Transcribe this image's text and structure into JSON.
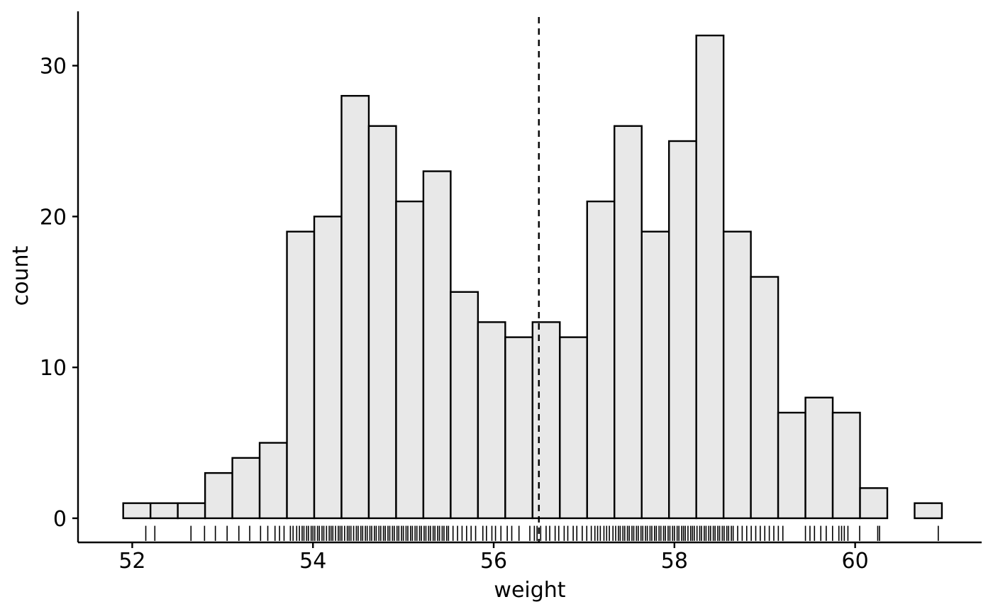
{
  "chart_data": {
    "type": "bar",
    "subtype": "histogram",
    "title": "",
    "xlabel": "weight",
    "ylabel": "count",
    "xlim": [
      51.4,
      61.4
    ],
    "ylim": [
      -1.6,
      33.6
    ],
    "x_ticks": [
      52,
      54,
      56,
      58,
      60
    ],
    "y_ticks": [
      0,
      10,
      20,
      30
    ],
    "x_tick_labels": [
      "52",
      "54",
      "56",
      "58",
      "60"
    ],
    "y_tick_labels": [
      "0",
      "10",
      "20",
      "30"
    ],
    "bin_start": 51.9,
    "bin_width": 0.302,
    "counts": [
      1,
      1,
      1,
      3,
      4,
      5,
      19,
      20,
      28,
      26,
      21,
      23,
      15,
      13,
      12,
      13,
      12,
      21,
      26,
      19,
      25,
      32,
      19,
      16,
      7,
      8,
      7,
      2,
      0,
      1
    ],
    "mean_line": {
      "x": 56.5,
      "style": "dashed"
    },
    "rug_x": [
      52.15,
      52.25,
      52.65,
      52.8,
      52.92,
      53.05,
      53.18,
      53.3,
      53.42,
      53.5,
      53.58,
      53.63,
      53.68,
      53.75,
      53.78,
      53.82,
      53.85,
      53.88,
      53.9,
      53.93,
      53.95,
      53.98,
      54.0,
      54.02,
      54.05,
      54.07,
      54.1,
      54.12,
      54.15,
      54.18,
      54.2,
      54.22,
      54.25,
      54.28,
      54.3,
      54.32,
      54.35,
      54.38,
      54.4,
      54.42,
      54.45,
      54.48,
      54.5,
      54.53,
      54.55,
      54.58,
      54.6,
      54.63,
      54.65,
      54.68,
      54.7,
      54.73,
      54.75,
      54.78,
      54.8,
      54.83,
      54.85,
      54.88,
      54.9,
      54.93,
      54.95,
      54.98,
      55.0,
      55.03,
      55.05,
      55.08,
      55.1,
      55.13,
      55.15,
      55.18,
      55.2,
      55.23,
      55.25,
      55.28,
      55.3,
      55.33,
      55.35,
      55.38,
      55.4,
      55.43,
      55.45,
      55.48,
      55.5,
      55.55,
      55.6,
      55.65,
      55.7,
      55.75,
      55.8,
      55.88,
      55.92,
      55.98,
      56.02,
      56.08,
      56.15,
      56.2,
      56.28,
      56.4,
      56.45,
      56.48,
      56.52,
      56.58,
      56.62,
      56.68,
      56.72,
      56.78,
      56.82,
      56.88,
      56.92,
      56.98,
      57.03,
      57.08,
      57.12,
      57.15,
      57.18,
      57.22,
      57.25,
      57.28,
      57.32,
      57.35,
      57.38,
      57.4,
      57.43,
      57.45,
      57.48,
      57.5,
      57.53,
      57.55,
      57.58,
      57.6,
      57.63,
      57.65,
      57.68,
      57.7,
      57.73,
      57.75,
      57.78,
      57.8,
      57.83,
      57.85,
      57.88,
      57.9,
      57.93,
      57.95,
      57.98,
      58.0,
      58.03,
      58.05,
      58.08,
      58.1,
      58.12,
      58.15,
      58.18,
      58.2,
      58.22,
      58.25,
      58.28,
      58.3,
      58.33,
      58.35,
      58.38,
      58.4,
      58.43,
      58.45,
      58.48,
      58.5,
      58.53,
      58.55,
      58.58,
      58.6,
      58.63,
      58.65,
      58.7,
      58.75,
      58.8,
      58.85,
      58.9,
      58.95,
      59.0,
      59.05,
      59.1,
      59.15,
      59.2,
      59.45,
      59.5,
      59.55,
      59.62,
      59.68,
      59.75,
      59.82,
      59.85,
      59.88,
      59.92,
      60.05,
      60.25,
      60.27,
      60.92
    ]
  }
}
